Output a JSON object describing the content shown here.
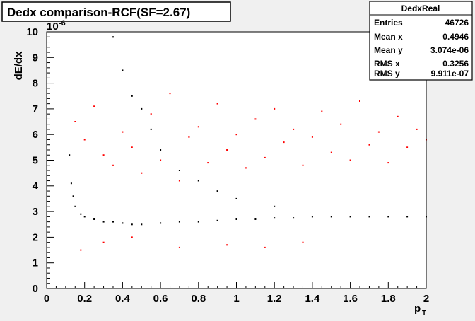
{
  "chart_data": {
    "type": "scatter",
    "title": "Dedx comparison-RCF(SF=2.67)",
    "xlabel": "p",
    "xlabel_sub": "T",
    "ylabel": "dE/dx",
    "y_exponent_base": "10",
    "y_exponent": "-6",
    "xlim": [
      0,
      2
    ],
    "ylim": [
      0,
      10
    ],
    "x_ticks": [
      "0",
      "0.2",
      "0.4",
      "0.6",
      "0.8",
      "1",
      "1.2",
      "1.4",
      "1.6",
      "1.8",
      "2"
    ],
    "y_ticks": [
      "0",
      "1",
      "2",
      "3",
      "4",
      "5",
      "6",
      "7",
      "8",
      "9",
      "10"
    ],
    "grid": false,
    "series": [
      {
        "color": "#000000",
        "description": "dense black band",
        "points": [
          [
            0.12,
            5.2
          ],
          [
            0.13,
            4.1
          ],
          [
            0.14,
            3.6
          ],
          [
            0.15,
            3.2
          ],
          [
            0.18,
            2.9
          ],
          [
            0.2,
            2.8
          ],
          [
            0.25,
            2.7
          ],
          [
            0.3,
            2.6
          ],
          [
            0.35,
            2.6
          ],
          [
            0.4,
            2.55
          ],
          [
            0.45,
            2.5
          ],
          [
            0.5,
            2.5
          ],
          [
            0.6,
            2.55
          ],
          [
            0.7,
            2.6
          ],
          [
            0.8,
            2.6
          ],
          [
            0.9,
            2.65
          ],
          [
            1.0,
            2.7
          ],
          [
            1.1,
            2.7
          ],
          [
            1.2,
            2.75
          ],
          [
            1.3,
            2.75
          ],
          [
            1.4,
            2.8
          ],
          [
            1.5,
            2.8
          ],
          [
            1.6,
            2.8
          ],
          [
            1.7,
            2.8
          ],
          [
            1.8,
            2.8
          ],
          [
            1.9,
            2.8
          ],
          [
            2.0,
            2.8
          ],
          [
            0.35,
            9.8
          ],
          [
            0.4,
            8.5
          ],
          [
            0.45,
            7.5
          ],
          [
            0.5,
            7.0
          ],
          [
            0.55,
            6.2
          ],
          [
            0.6,
            5.4
          ],
          [
            0.7,
            4.6
          ],
          [
            0.8,
            4.2
          ],
          [
            0.9,
            3.8
          ],
          [
            1.0,
            3.5
          ],
          [
            1.2,
            3.2
          ]
        ]
      },
      {
        "color": "#ff0000",
        "description": "sparse red points",
        "points": [
          [
            0.15,
            6.5
          ],
          [
            0.2,
            5.8
          ],
          [
            0.25,
            7.1
          ],
          [
            0.3,
            5.2
          ],
          [
            0.35,
            4.8
          ],
          [
            0.4,
            6.1
          ],
          [
            0.45,
            5.5
          ],
          [
            0.5,
            4.5
          ],
          [
            0.55,
            6.8
          ],
          [
            0.6,
            5.0
          ],
          [
            0.65,
            7.6
          ],
          [
            0.7,
            4.2
          ],
          [
            0.75,
            5.9
          ],
          [
            0.8,
            6.3
          ],
          [
            0.85,
            4.9
          ],
          [
            0.9,
            7.2
          ],
          [
            0.95,
            5.4
          ],
          [
            1.0,
            6.0
          ],
          [
            1.05,
            4.7
          ],
          [
            1.1,
            6.6
          ],
          [
            1.15,
            5.1
          ],
          [
            1.2,
            7.0
          ],
          [
            1.25,
            5.7
          ],
          [
            1.3,
            6.2
          ],
          [
            1.35,
            4.8
          ],
          [
            1.4,
            5.9
          ],
          [
            1.45,
            6.9
          ],
          [
            1.5,
            5.3
          ],
          [
            1.55,
            6.4
          ],
          [
            1.6,
            5.0
          ],
          [
            1.65,
            7.3
          ],
          [
            1.7,
            5.6
          ],
          [
            1.75,
            6.1
          ],
          [
            1.8,
            4.9
          ],
          [
            1.85,
            6.7
          ],
          [
            1.9,
            5.5
          ],
          [
            1.95,
            6.2
          ],
          [
            2.0,
            5.8
          ],
          [
            0.18,
            1.5
          ],
          [
            0.3,
            1.8
          ],
          [
            0.45,
            2.0
          ],
          [
            0.7,
            1.6
          ],
          [
            0.95,
            1.7
          ],
          [
            1.15,
            1.6
          ],
          [
            1.35,
            1.8
          ]
        ]
      }
    ]
  },
  "stats_box": {
    "name": "DedxReal",
    "rows": [
      {
        "label": "Entries",
        "value": "46726"
      },
      {
        "label": "Mean x",
        "value": "0.4946"
      },
      {
        "label": "Mean y",
        "value": "3.074e-06"
      },
      {
        "label": "RMS x",
        "value": "0.3256"
      },
      {
        "label": "RMS y",
        "value": "9.911e-07"
      }
    ]
  },
  "colors": {
    "frame_background": "#f0f0f0",
    "plot_background": "#ffffff",
    "points_main": "#000000",
    "points_overlay": "#ff0000"
  }
}
